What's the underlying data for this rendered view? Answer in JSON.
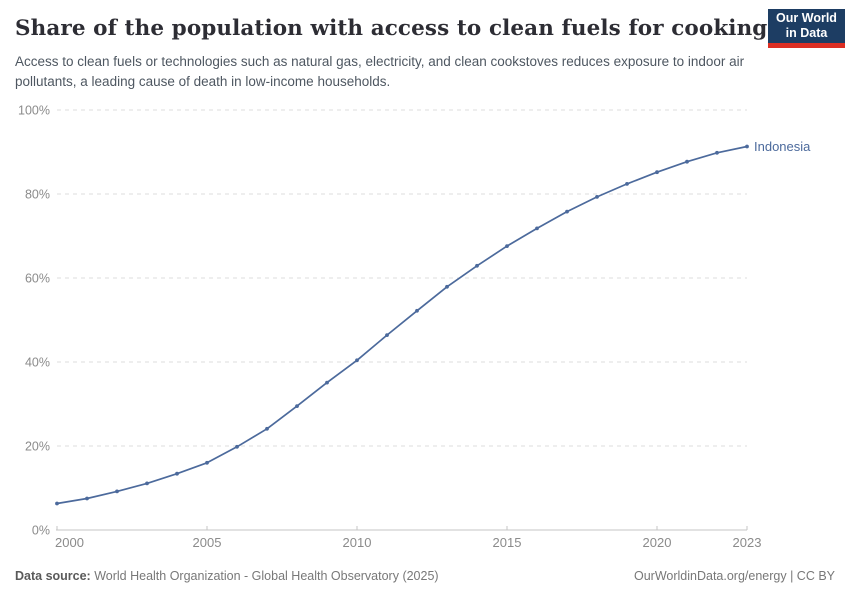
{
  "header": {
    "title": "Share of the population with access to clean fuels for cooking",
    "subtitle": "Access to clean fuels or technologies such as natural gas, electricity, and clean cookstoves reduces exposure to indoor air pollutants, a leading cause of death in low-income households.",
    "logo": {
      "line1": "Our World",
      "line2": "in Data"
    }
  },
  "chart_data": {
    "type": "line",
    "title": "Share of the population with access to clean fuels for cooking",
    "xlabel": "",
    "ylabel": "",
    "xlim": [
      2000,
      2023
    ],
    "ylim": [
      0,
      100
    ],
    "grid": "horizontal-dashed",
    "legend_position": "end-of-line-label",
    "x_ticks": [
      {
        "value": 2000,
        "label": "2000"
      },
      {
        "value": 2005,
        "label": "2005"
      },
      {
        "value": 2010,
        "label": "2010"
      },
      {
        "value": 2015,
        "label": "2015"
      },
      {
        "value": 2020,
        "label": "2020"
      },
      {
        "value": 2023,
        "label": "2023"
      }
    ],
    "y_ticks": [
      {
        "value": 0,
        "label": "0%"
      },
      {
        "value": 20,
        "label": "20%"
      },
      {
        "value": 40,
        "label": "40%"
      },
      {
        "value": 60,
        "label": "60%"
      },
      {
        "value": 80,
        "label": "80%"
      },
      {
        "value": 100,
        "label": "100%"
      }
    ],
    "series": [
      {
        "name": "Indonesia",
        "color": "#4C6A9C",
        "x": [
          2000,
          2001,
          2002,
          2003,
          2004,
          2005,
          2006,
          2007,
          2008,
          2009,
          2010,
          2011,
          2012,
          2013,
          2014,
          2015,
          2016,
          2017,
          2018,
          2019,
          2020,
          2021,
          2022,
          2023
        ],
        "values": [
          6.3,
          7.5,
          9.2,
          11.1,
          13.4,
          16.0,
          19.8,
          24.1,
          29.5,
          35.1,
          40.4,
          46.4,
          52.2,
          57.9,
          62.9,
          67.6,
          71.8,
          75.8,
          79.3,
          82.4,
          85.2,
          87.7,
          89.8,
          91.3
        ]
      }
    ],
    "colors": {
      "grid": "#dddddd",
      "axis": "#c4c4c4",
      "tick_label": "#8b8b8b"
    }
  },
  "footer": {
    "source_label": "Data source:",
    "source_text": " World Health Organization - Global Health Observatory (2025)",
    "rights": "OurWorldinData.org/energy | CC BY"
  }
}
